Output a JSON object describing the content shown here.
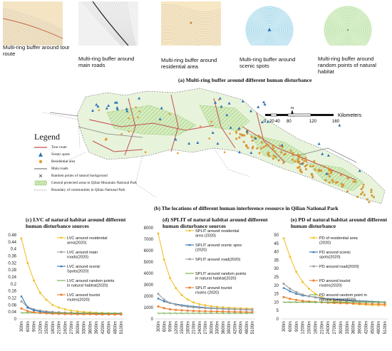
{
  "thumbnails": [
    {
      "caption": "Multi-ring buffer around tour route",
      "bg": "#f4e4c4",
      "line": "#c96a4a",
      "kind": "route"
    },
    {
      "caption": "Multi-ring buffer around main roads",
      "bg": "#f1f1f1",
      "line": "#222222",
      "kind": "road"
    },
    {
      "caption": "Multi-ring buffer around residential area",
      "bg": "#f8e7c4",
      "line": "#c98a2a",
      "kind": "residential"
    },
    {
      "caption": "Multi-ring buffer around scenic spots",
      "bg": "#dff3f8",
      "line": "#3a9fd0",
      "kind": "scenic"
    },
    {
      "caption": "Multi-ring buffer around random points of natural habitat",
      "bg": "#e5f5da",
      "line": "#6cbd4a",
      "kind": "random"
    }
  ],
  "caption_a": "(a) Multi-ring buffer around different human disturbance",
  "caption_b": "(b) The locations of different human interference resource in Qilian National Park",
  "map": {
    "north_label": "N",
    "scale_labels": [
      "0",
      "20",
      "40",
      "80",
      "120",
      "160"
    ],
    "scale_unit": "Kilometers",
    "legend_title": "Legend",
    "legend_items": [
      {
        "label": "Tour route",
        "symbol": "line",
        "color": "#c0504d"
      },
      {
        "label": "Scenic spots",
        "symbol": "triangle",
        "color": "#2e75b6"
      },
      {
        "label": "Residential area",
        "symbol": "dot",
        "color": "#e59b2b"
      },
      {
        "label": "Main roads",
        "symbol": "line",
        "color": "#7f7f7f"
      },
      {
        "label": "Random points of natural background",
        "symbol": "cross",
        "color": "#444444"
      },
      {
        "label": "General protected areas in Qilian Mountain National Park",
        "symbol": "hatch",
        "color": "#a9d18e"
      },
      {
        "label": "Boundary of communities in Qilian National Park",
        "symbol": "dash",
        "color": "#888888"
      }
    ]
  },
  "chart_data": [
    {
      "type": "line",
      "title": "(c) LVC of natural habitat around different human disturbance sources",
      "categories": [
        "300m",
        "600m",
        "900m",
        "1200m",
        "1500m",
        "1800m",
        "2100m",
        "2400m",
        "2700m",
        "3000m",
        "3300m",
        "3600m",
        "3900m",
        "4200m",
        "4500m",
        "4800m",
        "5100m"
      ],
      "ylim": [
        0,
        0.48
      ],
      "yticks": [
        "0",
        "0.04",
        "0.08",
        "0.12",
        "0.16",
        "0.2",
        "0.24",
        "0.28",
        "0.32",
        "0.36",
        "0.4",
        "0.44",
        "0.48"
      ],
      "series": [
        {
          "name": "LVC around residential area(2020)",
          "color": "#f2c12e",
          "marker": "circle",
          "values": [
            0.46,
            0.32,
            0.22,
            0.15,
            0.11,
            0.08,
            0.065,
            0.055,
            0.048,
            0.044,
            0.04,
            0.038,
            0.036,
            0.034,
            0.033,
            0.032,
            0.031
          ]
        },
        {
          "name": "LVC around main roads(2020)",
          "color": "#9e9e9e",
          "marker": "square",
          "values": [
            0.1,
            0.07,
            0.055,
            0.048,
            0.043,
            0.04,
            0.038,
            0.036,
            0.035,
            0.034,
            0.033,
            0.032,
            0.031,
            0.031,
            0.03,
            0.03,
            0.03
          ]
        },
        {
          "name": "LVC around scenic Spots(2020)",
          "color": "#2e75b6",
          "marker": "triangle",
          "values": [
            0.13,
            0.065,
            0.05,
            0.042,
            0.038,
            0.035,
            0.033,
            0.032,
            0.031,
            0.03,
            0.03,
            0.029,
            0.029,
            0.028,
            0.028,
            0.028,
            0.028
          ]
        },
        {
          "name": "LVC around random points in natural habitat(2020)",
          "color": "#70ad47",
          "marker": "cross",
          "values": [
            0.035,
            0.035,
            0.035,
            0.034,
            0.034,
            0.034,
            0.034,
            0.033,
            0.033,
            0.033,
            0.033,
            0.033,
            0.033,
            0.033,
            0.033,
            0.033,
            0.033
          ]
        },
        {
          "name": "LVC around tourist routes(2020)",
          "color": "#ed7d31",
          "marker": "square",
          "values": [
            0.06,
            0.045,
            0.038,
            0.034,
            0.032,
            0.03,
            0.029,
            0.028,
            0.028,
            0.027,
            0.027,
            0.027,
            0.026,
            0.026,
            0.026,
            0.026,
            0.026
          ]
        }
      ]
    },
    {
      "type": "line",
      "title": "(d) SPLIT of natural habitat around different human disturbance sources",
      "categories": [
        "300m",
        "600m",
        "900m",
        "1200m",
        "1500m",
        "1800m",
        "2100m",
        "2400m",
        "2700m",
        "3000m",
        "3300m",
        "3600m",
        "3900m",
        "4200m",
        "4500m",
        "4800m",
        "5100m"
      ],
      "ylim": [
        0,
        8000
      ],
      "yticks": [
        "0",
        "1000",
        "2000",
        "3000",
        "4000",
        "5000",
        "6000",
        "7000",
        "8000"
      ],
      "series": [
        {
          "name": "SPLIT around residential area (2020)",
          "color": "#f2c12e",
          "marker": "circle",
          "values": [
            7500,
            5200,
            3600,
            2700,
            2100,
            1700,
            1450,
            1300,
            1200,
            1120,
            1060,
            1020,
            990,
            960,
            940,
            920,
            900
          ]
        },
        {
          "name": "SPLIT around scenic spos (2020)",
          "color": "#2e75b6",
          "marker": "triangle",
          "values": [
            1800,
            1550,
            1400,
            1300,
            1220,
            1150,
            1100,
            1050,
            1000,
            960,
            930,
            900,
            880,
            860,
            840,
            820,
            800
          ]
        },
        {
          "name": "SPLIT around road(2020)",
          "color": "#9e9e9e",
          "marker": "square",
          "values": [
            2200,
            1700,
            1400,
            1250,
            1150,
            1080,
            1020,
            980,
            950,
            920,
            900,
            880,
            860,
            850,
            840,
            830,
            820
          ]
        },
        {
          "name": "SPLIT around random points in natural habitat(2020)",
          "color": "#70ad47",
          "marker": "cross",
          "values": [
            500,
            500,
            500,
            500,
            500,
            500,
            500,
            500,
            500,
            500,
            500,
            500,
            500,
            500,
            500,
            500,
            500
          ]
        },
        {
          "name": "SPLIT around tourist routes (2020)",
          "color": "#ed7d31",
          "marker": "square",
          "values": [
            1100,
            950,
            850,
            800,
            760,
            730,
            710,
            690,
            680,
            670,
            660,
            650,
            640,
            630,
            620,
            610,
            600
          ]
        }
      ]
    },
    {
      "type": "line",
      "title": "(e) PD of natural habitat around different human disturbance",
      "categories": [
        "300m",
        "600m",
        "900m",
        "1200m",
        "1500m",
        "1800m",
        "2100m",
        "2400m",
        "2700m",
        "3000m",
        "3300m",
        "3600m",
        "3900m",
        "4200m",
        "4500m",
        "4800m",
        "5100m"
      ],
      "ylim": [
        0,
        50
      ],
      "yticks": [
        "0",
        "5",
        "10",
        "15",
        "20",
        "25",
        "30",
        "35",
        "40",
        "45",
        "50"
      ],
      "series": [
        {
          "name": "PD of residential area (2020)",
          "color": "#f2c12e",
          "marker": "circle",
          "values": [
            48,
            37,
            28,
            22,
            18,
            15,
            13,
            11.5,
            10.5,
            10,
            9.5,
            9,
            8.7,
            8.5,
            8.3,
            8.1,
            8
          ]
        },
        {
          "name": "PD around scenic spots(2020)",
          "color": "#2e75b6",
          "marker": "triangle",
          "values": [
            18.5,
            16.5,
            15,
            14,
            13.5,
            13,
            12.5,
            12,
            11.8,
            11.5,
            11.3,
            11,
            10.8,
            10.6,
            10.4,
            10.2,
            10
          ]
        },
        {
          "name": "PD around road(2020)",
          "color": "#9e9e9e",
          "marker": "square",
          "values": [
            21,
            18,
            16,
            14.5,
            13.5,
            12.8,
            12.2,
            11.8,
            11.4,
            11.1,
            10.8,
            10.6,
            10.4,
            10.2,
            10,
            9.9,
            9.8
          ]
        },
        {
          "name": "PD around tourist routes(2020)",
          "color": "#ed7d31",
          "marker": "square",
          "values": [
            13,
            12,
            11.3,
            10.8,
            10.4,
            10.1,
            9.9,
            9.7,
            9.5,
            9.4,
            9.3,
            9.2,
            9.1,
            9,
            8.9,
            8.8,
            8.7
          ]
        },
        {
          "name": "PD around random point in natural habitat(2020)",
          "color": "#70ad47",
          "marker": "cross",
          "values": [
            10,
            10,
            10,
            10,
            10,
            10,
            10,
            10,
            10,
            10,
            10,
            10,
            10,
            10,
            10,
            10,
            10
          ]
        }
      ]
    }
  ]
}
